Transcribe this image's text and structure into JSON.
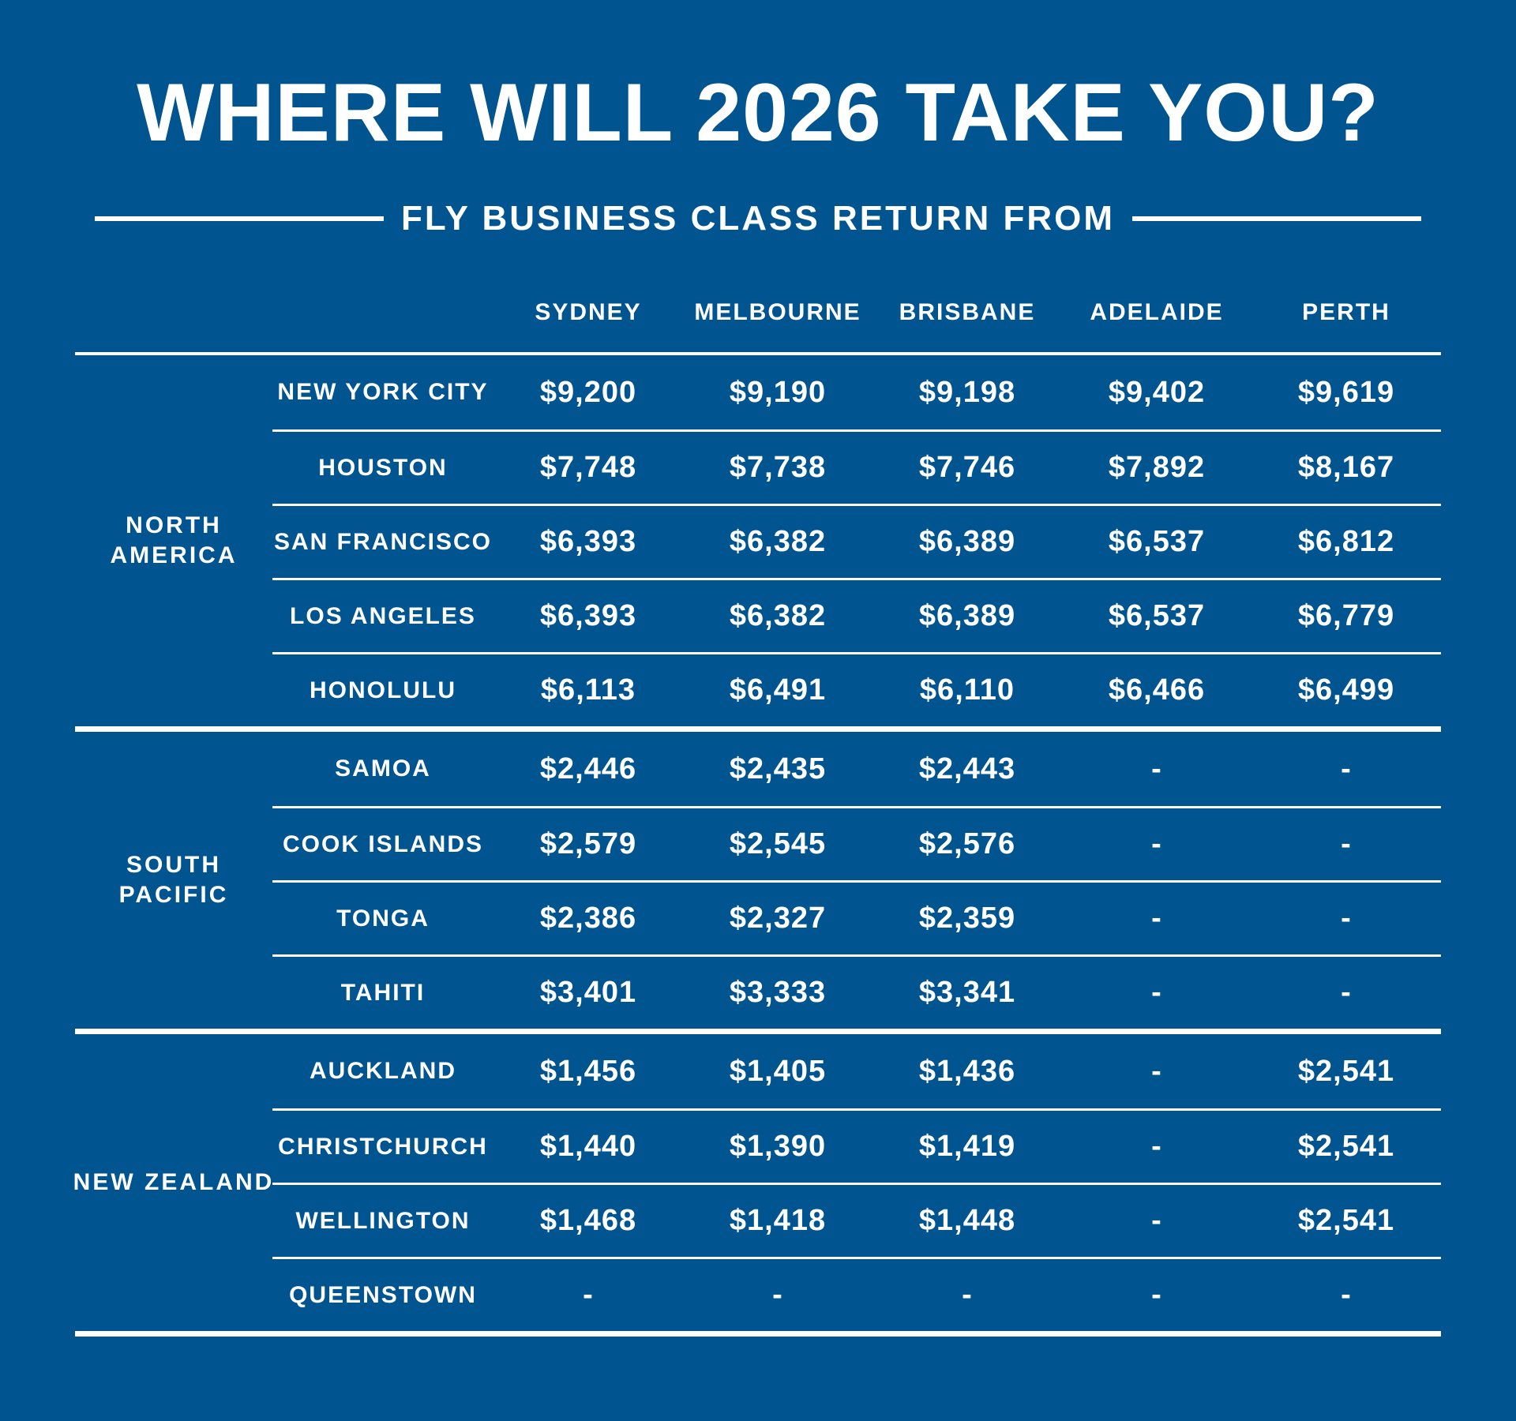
{
  "page": {
    "background_color": "#00548F",
    "text_color": "#FFFFFF"
  },
  "header": {
    "title": "WHERE WILL 2026 TAKE YOU?",
    "subtitle": "FLY BUSINESS CLASS RETURN FROM"
  },
  "chart_data": {
    "type": "table",
    "title": "WHERE WILL 2026 TAKE YOU?",
    "subtitle": "FLY BUSINESS CLASS RETURN FROM",
    "columns": [
      "SYDNEY",
      "MELBOURNE",
      "BRISBANE",
      "ADELAIDE",
      "PERTH"
    ],
    "empty_value": "-",
    "sections": [
      {
        "region": "NORTH AMERICA",
        "region_lines": [
          "NORTH",
          "AMERICA"
        ],
        "rows": [
          {
            "destination": "NEW YORK CITY",
            "prices": [
              "$9,200",
              "$9,190",
              "$9,198",
              "$9,402",
              "$9,619"
            ]
          },
          {
            "destination": "HOUSTON",
            "prices": [
              "$7,748",
              "$7,738",
              "$7,746",
              "$7,892",
              "$8,167"
            ]
          },
          {
            "destination": "SAN FRANCISCO",
            "prices": [
              "$6,393",
              "$6,382",
              "$6,389",
              "$6,537",
              "$6,812"
            ]
          },
          {
            "destination": "LOS ANGELES",
            "prices": [
              "$6,393",
              "$6,382",
              "$6,389",
              "$6,537",
              "$6,779"
            ]
          },
          {
            "destination": "HONOLULU",
            "prices": [
              "$6,113",
              "$6,491",
              "$6,110",
              "$6,466",
              "$6,499"
            ]
          }
        ]
      },
      {
        "region": "SOUTH PACIFIC",
        "region_lines": [
          "SOUTH",
          "PACIFIC"
        ],
        "rows": [
          {
            "destination": "SAMOA",
            "prices": [
              "$2,446",
              "$2,435",
              "$2,443",
              "-",
              "-"
            ]
          },
          {
            "destination": "COOK ISLANDS",
            "prices": [
              "$2,579",
              "$2,545",
              "$2,576",
              "-",
              "-"
            ]
          },
          {
            "destination": "TONGA",
            "prices": [
              "$2,386",
              "$2,327",
              "$2,359",
              "-",
              "-"
            ]
          },
          {
            "destination": "TAHITI",
            "prices": [
              "$3,401",
              "$3,333",
              "$3,341",
              "-",
              "-"
            ]
          }
        ]
      },
      {
        "region": "NEW ZEALAND",
        "region_lines": [
          "NEW ZEALAND"
        ],
        "rows": [
          {
            "destination": "AUCKLAND",
            "prices": [
              "$1,456",
              "$1,405",
              "$1,436",
              "-",
              "$2,541"
            ]
          },
          {
            "destination": "CHRISTCHURCH",
            "prices": [
              "$1,440",
              "$1,390",
              "$1,419",
              "-",
              "$2,541"
            ]
          },
          {
            "destination": "WELLINGTON",
            "prices": [
              "$1,468",
              "$1,418",
              "$1,448",
              "-",
              "$2,541"
            ]
          },
          {
            "destination": "QUEENSTOWN",
            "prices": [
              "-",
              "-",
              "-",
              "-",
              "-"
            ]
          }
        ]
      }
    ]
  }
}
